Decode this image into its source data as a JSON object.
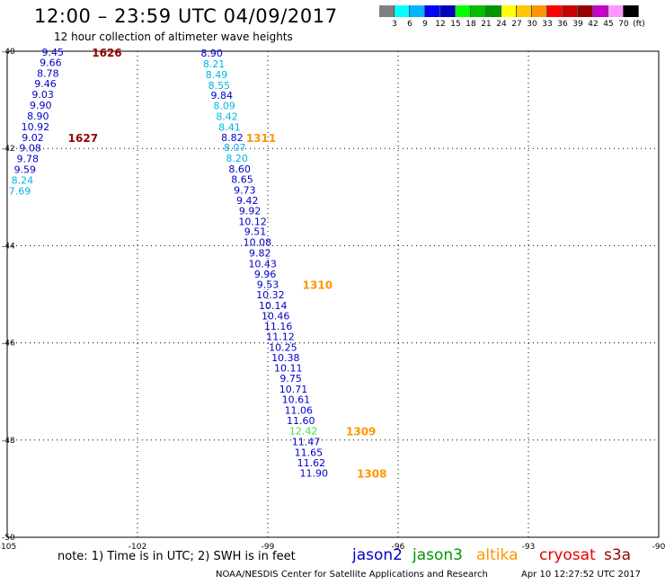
{
  "header": {
    "title": "12:00 – 23:59 UTC 04/09/2017",
    "subtitle": "12 hour collection of altimeter wave heights"
  },
  "color_scale": {
    "colors": [
      "#808080",
      "#00ffff",
      "#00b4ff",
      "#0000ff",
      "#0000c0",
      "#00ff00",
      "#00c000",
      "#009600",
      "#ffff00",
      "#ffc800",
      "#ff9600",
      "#ff0000",
      "#c80000",
      "#960000",
      "#c800c8",
      "#ff96ff",
      "#000000"
    ],
    "labels": [
      "3",
      "6",
      "9",
      "12",
      "15",
      "18",
      "21",
      "24",
      "27",
      "30",
      "33",
      "36",
      "39",
      "42",
      "45",
      "70",
      "(ft)"
    ]
  },
  "chart_data": {
    "type": "scatter",
    "x_range": [
      -105,
      -90
    ],
    "y_range": [
      -50,
      -40
    ],
    "x_ticks": [
      "-105",
      "-102",
      "-99",
      "-96",
      "-93",
      "-90"
    ],
    "y_ticks": [
      "-40",
      "-42",
      "-44",
      "-46",
      "-48",
      "-50"
    ],
    "grid": "dashed",
    "series": [
      {
        "name": "jason2",
        "color": "#0000c8",
        "points": [
          {
            "x": -103.95,
            "y": -40.02,
            "label": "9.45"
          },
          {
            "x": -104.0,
            "y": -40.23,
            "label": "9.66"
          },
          {
            "x": -104.06,
            "y": -40.45,
            "label": "8.78"
          },
          {
            "x": -104.12,
            "y": -40.67,
            "label": "9.46"
          },
          {
            "x": -104.18,
            "y": -40.89,
            "label": "9.03"
          },
          {
            "x": -104.23,
            "y": -41.11,
            "label": "9.90"
          },
          {
            "x": -104.29,
            "y": -41.33,
            "label": "8.90"
          },
          {
            "x": -104.35,
            "y": -41.55,
            "label": "10.92"
          },
          {
            "x": -104.41,
            "y": -41.77,
            "label": "9.02"
          },
          {
            "x": -104.47,
            "y": -41.99,
            "label": "9.08"
          },
          {
            "x": -104.53,
            "y": -42.21,
            "label": "9.78"
          },
          {
            "x": -104.59,
            "y": -42.43,
            "label": "9.59"
          },
          {
            "x": -104.65,
            "y": -42.65,
            "label": "8.24"
          },
          {
            "x": -104.71,
            "y": -42.87,
            "label": "7.69"
          }
        ]
      },
      {
        "name": "jason2",
        "color": "#0000c8",
        "points": [
          {
            "x": -100.29,
            "y": -40.04,
            "label": "8.90"
          },
          {
            "x": -100.24,
            "y": -40.26,
            "label": "8.21"
          },
          {
            "x": -100.18,
            "y": -40.48,
            "label": "8.49"
          },
          {
            "x": -100.12,
            "y": -40.7,
            "label": "8.55"
          },
          {
            "x": -100.06,
            "y": -40.91,
            "label": "9.84"
          },
          {
            "x": -100.0,
            "y": -41.12,
            "label": "8.09"
          },
          {
            "x": -99.94,
            "y": -41.34,
            "label": "8.42"
          },
          {
            "x": -99.88,
            "y": -41.56,
            "label": "8.41"
          },
          {
            "x": -99.82,
            "y": -41.77,
            "label": "8.82"
          },
          {
            "x": -99.76,
            "y": -41.98,
            "label": "8.07"
          },
          {
            "x": -99.71,
            "y": -42.2,
            "label": "8.20"
          },
          {
            "x": -99.65,
            "y": -42.42,
            "label": "8.60"
          },
          {
            "x": -99.59,
            "y": -42.63,
            "label": "8.65"
          },
          {
            "x": -99.53,
            "y": -42.86,
            "label": "9.73"
          },
          {
            "x": -99.47,
            "y": -43.07,
            "label": "9.42"
          },
          {
            "x": -99.41,
            "y": -43.28,
            "label": "9.92"
          },
          {
            "x": -99.35,
            "y": -43.5,
            "label": "10.12"
          },
          {
            "x": -99.29,
            "y": -43.71,
            "label": "9.51"
          },
          {
            "x": -99.24,
            "y": -43.93,
            "label": "10.08"
          },
          {
            "x": -99.18,
            "y": -44.15,
            "label": "9.82"
          },
          {
            "x": -99.12,
            "y": -44.37,
            "label": "10.43"
          },
          {
            "x": -99.06,
            "y": -44.58,
            "label": "9.96"
          },
          {
            "x": -99.0,
            "y": -44.8,
            "label": "9.53"
          },
          {
            "x": -98.94,
            "y": -45.01,
            "label": "10.32"
          },
          {
            "x": -98.88,
            "y": -45.23,
            "label": "10.14"
          },
          {
            "x": -98.82,
            "y": -45.44,
            "label": "10.46"
          },
          {
            "x": -98.76,
            "y": -45.66,
            "label": "11.16"
          },
          {
            "x": -98.71,
            "y": -45.87,
            "label": "11.12"
          },
          {
            "x": -98.65,
            "y": -46.09,
            "label": "10.25"
          },
          {
            "x": -98.59,
            "y": -46.3,
            "label": "10.38"
          },
          {
            "x": -98.53,
            "y": -46.52,
            "label": "10.11"
          },
          {
            "x": -98.47,
            "y": -46.73,
            "label": "9.75"
          },
          {
            "x": -98.41,
            "y": -46.95,
            "label": "10.71"
          },
          {
            "x": -98.35,
            "y": -47.16,
            "label": "10.61"
          },
          {
            "x": -98.29,
            "y": -47.38,
            "label": "11.06"
          },
          {
            "x": -98.24,
            "y": -47.6,
            "label": "11.60"
          },
          {
            "x": -98.18,
            "y": -47.81,
            "label": "12.42"
          },
          {
            "x": -98.12,
            "y": -48.03,
            "label": "11.47"
          },
          {
            "x": -98.06,
            "y": -48.25,
            "label": "11.65"
          },
          {
            "x": -98.0,
            "y": -48.47,
            "label": "11.62"
          },
          {
            "x": -97.94,
            "y": -48.68,
            "label": "11.90"
          }
        ]
      }
    ],
    "time_annotations": [
      {
        "x": -103.05,
        "y": -40.02,
        "label": "1626",
        "color": "#960000"
      },
      {
        "x": -103.6,
        "y": -41.77,
        "label": "1627",
        "color": "#960000"
      },
      {
        "x": -99.5,
        "y": -41.77,
        "label": "1311",
        "color": "#ff9600"
      },
      {
        "x": -98.2,
        "y": -44.8,
        "label": "1310",
        "color": "#ff9600"
      },
      {
        "x": -97.2,
        "y": -47.81,
        "label": "1309",
        "color": "#ff9600"
      },
      {
        "x": -96.95,
        "y": -48.68,
        "label": "1308",
        "color": "#ff9600"
      }
    ]
  },
  "footer": {
    "note": "note:  1) Time is in UTC;  2) SWH is in feet",
    "satellites": [
      {
        "name": "jason2",
        "color": "#0000c8"
      },
      {
        "name": "jason3",
        "color": "#009600"
      },
      {
        "name": "altika",
        "color": "#ff9600"
      },
      {
        "name": "cryosat",
        "color": "#e60000"
      },
      {
        "name": "s3a",
        "color": "#960000"
      }
    ],
    "credit": "NOAA/NESDIS Center for Satellite Applications and Research",
    "timestamp": "Apr 10 12:27:52 UTC 2017"
  }
}
